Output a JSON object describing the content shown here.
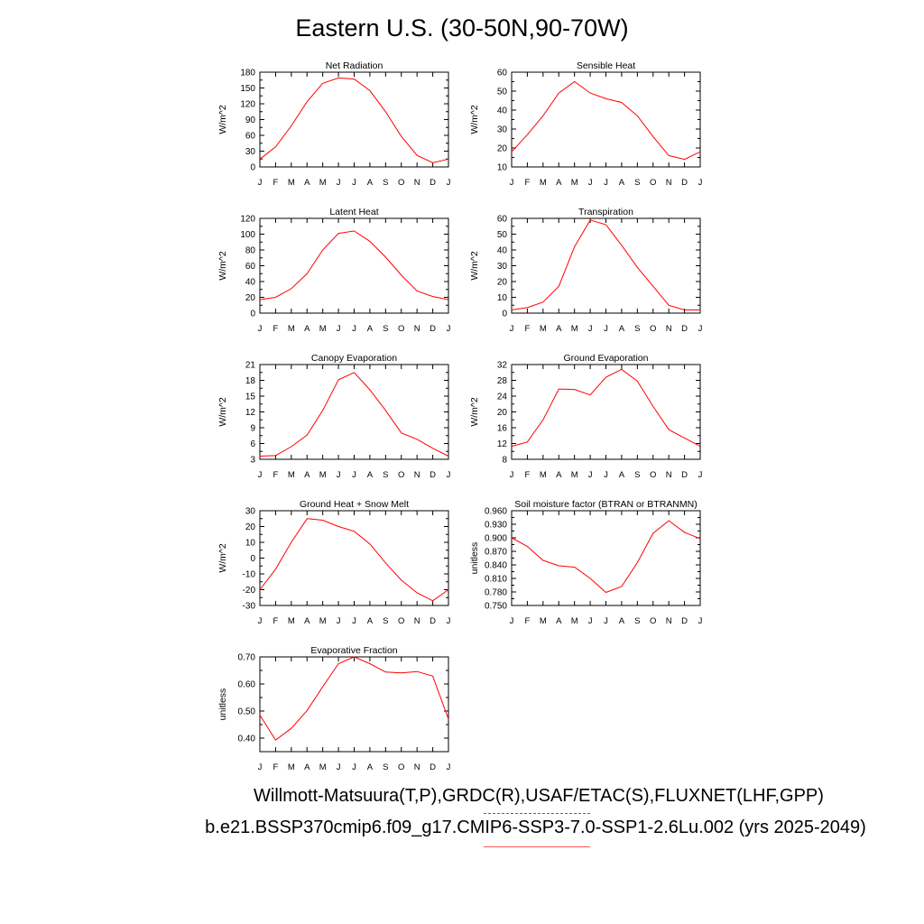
{
  "title": "Eastern U.S. (30-50N,90-70W)",
  "footer": {
    "line1": "Willmott-Matsuura(T,P),GRDC(R),USAF/ETAC(S),FLUXNET(LHF,GPP)",
    "line2": "b.e21.BSSP370cmip6.f09_g17.CMIP6-SSP3-7.0-SSP1-2.6Lu.002 (yrs 2025-2049)"
  },
  "colors": {
    "line": "#ff0000",
    "axis": "#000000",
    "legend_dash": "#5555dd",
    "legend_line": "#ff5555"
  },
  "chart_data": [
    {
      "type": "line",
      "title": "Net Radiation",
      "ylabel": "W/m^2",
      "categories": [
        "J",
        "F",
        "M",
        "A",
        "M",
        "J",
        "J",
        "A",
        "S",
        "O",
        "N",
        "D",
        "J"
      ],
      "ylim": [
        0,
        180
      ],
      "yticks": [
        "0",
        "30",
        "60",
        "90",
        "120",
        "150",
        "180"
      ],
      "values": [
        15,
        38,
        78,
        124,
        159,
        169,
        167,
        145,
        105,
        58,
        22,
        8,
        15
      ]
    },
    {
      "type": "line",
      "title": "Sensible Heat",
      "ylabel": "W/m^2",
      "categories": [
        "J",
        "F",
        "M",
        "A",
        "M",
        "J",
        "J",
        "A",
        "S",
        "O",
        "N",
        "D",
        "J"
      ],
      "ylim": [
        10,
        60
      ],
      "yticks": [
        "10",
        "20",
        "30",
        "40",
        "50",
        "60"
      ],
      "values": [
        18,
        27,
        37,
        49,
        55,
        49,
        46,
        44,
        37,
        26,
        16,
        14,
        18
      ]
    },
    {
      "type": "line",
      "title": "Latent Heat",
      "ylabel": "W/m^2",
      "categories": [
        "J",
        "F",
        "M",
        "A",
        "M",
        "J",
        "J",
        "A",
        "S",
        "O",
        "N",
        "D",
        "J"
      ],
      "ylim": [
        0,
        120
      ],
      "yticks": [
        "0",
        "20",
        "40",
        "60",
        "80",
        "100",
        "120"
      ],
      "values": [
        17,
        20,
        31,
        50,
        80,
        101,
        104,
        91,
        71,
        48,
        28,
        21,
        17
      ]
    },
    {
      "type": "line",
      "title": "Transpiration",
      "ylabel": "W/m^2",
      "categories": [
        "J",
        "F",
        "M",
        "A",
        "M",
        "J",
        "J",
        "A",
        "S",
        "O",
        "N",
        "D",
        "J"
      ],
      "ylim": [
        0,
        60
      ],
      "yticks": [
        "0",
        "10",
        "20",
        "30",
        "40",
        "50",
        "60"
      ],
      "values": [
        2,
        3.5,
        7,
        17,
        42,
        59,
        56,
        43,
        29,
        17,
        5,
        2,
        2
      ]
    },
    {
      "type": "line",
      "title": "Canopy Evaporation",
      "ylabel": "W/m^2",
      "categories": [
        "J",
        "F",
        "M",
        "A",
        "M",
        "J",
        "J",
        "A",
        "S",
        "O",
        "N",
        "D",
        "J"
      ],
      "ylim": [
        3,
        21
      ],
      "yticks": [
        "3",
        "6",
        "9",
        "12",
        "15",
        "18",
        "21"
      ],
      "values": [
        3.6,
        3.7,
        5.4,
        7.6,
        12.3,
        18.1,
        19.5,
        16.2,
        12.3,
        8.0,
        6.8,
        5.1,
        3.6
      ]
    },
    {
      "type": "line",
      "title": "Ground Evaporation",
      "ylabel": "W/m^2",
      "categories": [
        "J",
        "F",
        "M",
        "A",
        "M",
        "J",
        "J",
        "A",
        "S",
        "O",
        "N",
        "D",
        "J"
      ],
      "ylim": [
        8,
        32
      ],
      "yticks": [
        "8",
        "12",
        "16",
        "20",
        "24",
        "28",
        "32"
      ],
      "values": [
        11.3,
        12.4,
        18.0,
        25.8,
        25.7,
        24.3,
        28.8,
        30.8,
        27.8,
        21.4,
        15.5,
        13.4,
        11.3
      ]
    },
    {
      "type": "line",
      "title": "Ground Heat + Snow Melt",
      "ylabel": "W/m^2",
      "categories": [
        "J",
        "F",
        "M",
        "A",
        "M",
        "J",
        "J",
        "A",
        "S",
        "O",
        "N",
        "D",
        "J"
      ],
      "ylim": [
        -30,
        30
      ],
      "yticks": [
        "-30",
        "-20",
        "-10",
        "0",
        "10",
        "20",
        "30"
      ],
      "values": [
        -20,
        -7,
        10,
        25,
        24,
        20,
        17,
        9,
        -3,
        -14,
        -22,
        -27,
        -20
      ]
    },
    {
      "type": "line",
      "title": "Soil moisture factor (BTRAN or BTRANMN)",
      "ylabel": "unitless",
      "categories": [
        "J",
        "F",
        "M",
        "A",
        "M",
        "J",
        "J",
        "A",
        "S",
        "O",
        "N",
        "D",
        "J"
      ],
      "ylim": [
        0.75,
        0.96
      ],
      "yticks": [
        "0.750",
        "0.780",
        "0.810",
        "0.840",
        "0.870",
        "0.900",
        "0.930",
        "0.960"
      ],
      "values": [
        0.9,
        0.881,
        0.85,
        0.838,
        0.835,
        0.81,
        0.779,
        0.792,
        0.845,
        0.91,
        0.938,
        0.912,
        0.898
      ]
    },
    {
      "type": "line",
      "title": "Evaporative Fraction",
      "ylabel": "unitless",
      "categories": [
        "J",
        "F",
        "M",
        "A",
        "M",
        "J",
        "J",
        "A",
        "S",
        "O",
        "N",
        "D",
        "J"
      ],
      "ylim": [
        0.35,
        0.7
      ],
      "yticks": [
        "0.40",
        "0.50",
        "0.60",
        "0.70"
      ],
      "values": [
        0.485,
        0.393,
        0.436,
        0.502,
        0.59,
        0.675,
        0.7,
        0.675,
        0.644,
        0.641,
        0.646,
        0.629,
        0.47
      ]
    }
  ]
}
